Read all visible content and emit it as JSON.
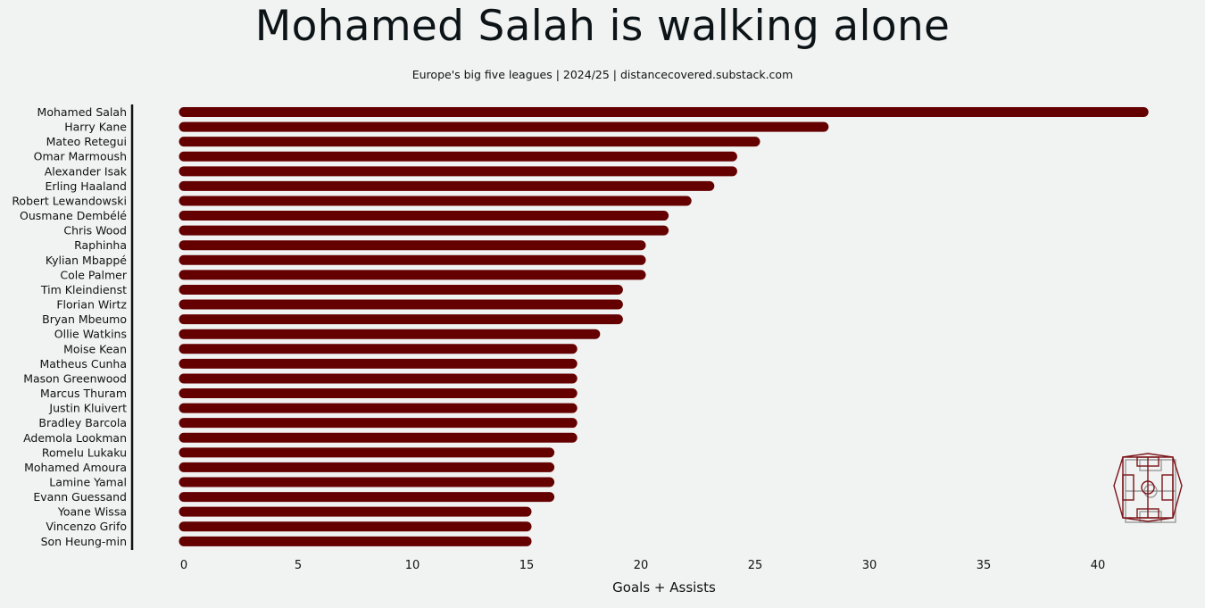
{
  "chart_data": {
    "type": "bar",
    "orientation": "horizontal",
    "title": "Mohamed Salah is walking alone",
    "subtitle": "Europe's big five leagues | 2024/25 | distancecovered.substack.com",
    "xlabel": "Goals + Assists",
    "ylabel": "",
    "xlim": [
      0,
      42.5
    ],
    "xticks": [
      0,
      5,
      10,
      15,
      20,
      25,
      30,
      35,
      40
    ],
    "grid": false,
    "bar_color": "#650000",
    "categories": [
      "Mohamed Salah",
      "Harry Kane",
      "Mateo Retegui",
      "Omar Marmoush",
      "Alexander Isak",
      "Erling Haaland",
      "Robert Lewandowski",
      "Ousmane Dembélé",
      "Chris Wood",
      "Raphinha",
      "Kylian Mbappé",
      "Cole Palmer",
      "Tim Kleindienst",
      "Florian Wirtz",
      "Bryan Mbeumo",
      "Ollie Watkins",
      "Moise Kean",
      "Matheus Cunha",
      "Mason Greenwood",
      "Marcus Thuram",
      "Justin Kluivert",
      "Bradley Barcola",
      "Ademola Lookman",
      "Romelu Lukaku",
      "Mohamed Amoura",
      "Lamine Yamal",
      "Evann Guessand",
      "Yoane Wissa",
      "Vincenzo Grifo",
      "Son Heung-min"
    ],
    "values": [
      42,
      28,
      25,
      24,
      24,
      23,
      22,
      21,
      21,
      20,
      20,
      20,
      19,
      19,
      19,
      18,
      17,
      17,
      17,
      17,
      17,
      17,
      17,
      16,
      16,
      16,
      16,
      15,
      15,
      15
    ]
  },
  "logo": {
    "icon": "pitch-logo-icon",
    "color": "#7a1418"
  }
}
